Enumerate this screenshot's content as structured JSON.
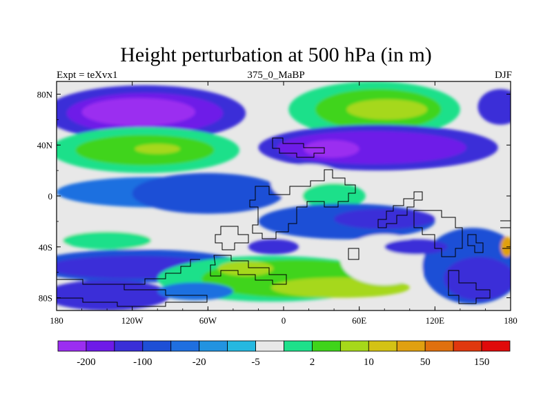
{
  "chart_data": {
    "type": "heatmap",
    "title": "Height perturbation at 500 hPa (in m)",
    "subtitle_left": "Expt = teXvx1",
    "subtitle_center": "375_0_MaBP",
    "subtitle_right": "DJF",
    "x_range": [
      -180,
      180
    ],
    "y_range": [
      -90,
      90
    ],
    "x_ticks": [
      {
        "value": -180,
        "label": "180"
      },
      {
        "value": -120,
        "label": "120W"
      },
      {
        "value": -60,
        "label": "60W"
      },
      {
        "value": 0,
        "label": "0"
      },
      {
        "value": 60,
        "label": "60E"
      },
      {
        "value": 120,
        "label": "120E"
      },
      {
        "value": 180,
        "label": "180"
      }
    ],
    "y_ticks": [
      {
        "value": 80,
        "label": "80N"
      },
      {
        "value": 40,
        "label": "40N"
      },
      {
        "value": 0,
        "label": "0"
      },
      {
        "value": -40,
        "label": "40S"
      },
      {
        "value": -80,
        "label": "80S"
      }
    ],
    "colorbar": {
      "colors": [
        "#9b2ef0",
        "#6e1ae8",
        "#3a2fd8",
        "#1e4fd6",
        "#1f6fe0",
        "#2293e0",
        "#25b8e0",
        "#e8e8e8",
        "#1ee08a",
        "#3fd41a",
        "#a6d81a",
        "#d4c214",
        "#e0a010",
        "#e0700e",
        "#e0380e",
        "#e00a0a"
      ],
      "tick_labels": [
        {
          "boundary": 1,
          "label": "-200"
        },
        {
          "boundary": 3,
          "label": "-100"
        },
        {
          "boundary": 5,
          "label": "-20"
        },
        {
          "boundary": 7,
          "label": "-5"
        },
        {
          "boundary": 9,
          "label": "2"
        },
        {
          "boundary": 11,
          "label": "10"
        },
        {
          "boundary": 13,
          "label": "50"
        },
        {
          "boundary": 15,
          "label": "150"
        }
      ]
    },
    "field_blobs": [
      {
        "lon": -110,
        "lat": 65,
        "rx": 80,
        "ry": 22,
        "value": -5
      },
      {
        "lon": -110,
        "lat": 65,
        "rx": 62,
        "ry": 16,
        "value": -6
      },
      {
        "lon": -115,
        "lat": 66,
        "rx": 45,
        "ry": 11,
        "value": -7
      },
      {
        "lon": -110,
        "lat": 36,
        "rx": 75,
        "ry": 18,
        "value": 1
      },
      {
        "lon": -110,
        "lat": 36,
        "rx": 55,
        "ry": 12,
        "value": 2
      },
      {
        "lon": -100,
        "lat": 37,
        "rx": 18,
        "ry": 4,
        "value": 3
      },
      {
        "lon": 72,
        "lat": 68,
        "rx": 68,
        "ry": 22,
        "value": 1
      },
      {
        "lon": 75,
        "lat": 68,
        "rx": 50,
        "ry": 16,
        "value": 2
      },
      {
        "lon": 82,
        "lat": 68,
        "rx": 32,
        "ry": 8,
        "value": 3
      },
      {
        "lon": 75,
        "lat": 38,
        "rx": 95,
        "ry": 18,
        "value": -5
      },
      {
        "lon": 70,
        "lat": 38,
        "rx": 75,
        "ry": 13,
        "value": -6
      },
      {
        "lon": 38,
        "lat": 37,
        "rx": 22,
        "ry": 7,
        "value": -7
      },
      {
        "lon": 172,
        "lat": 70,
        "rx": 18,
        "ry": 14,
        "value": -5
      },
      {
        "lon": -100,
        "lat": 3,
        "rx": 80,
        "ry": 12,
        "value": -3
      },
      {
        "lon": -60,
        "lat": 2,
        "rx": 60,
        "ry": 16,
        "value": -4
      },
      {
        "lon": 20,
        "lat": 10,
        "rx": 30,
        "ry": 15,
        "value": 0
      },
      {
        "lon": 40,
        "lat": 0,
        "rx": 25,
        "ry": 10,
        "value": 1
      },
      {
        "lon": 130,
        "lat": 10,
        "rx": 45,
        "ry": 10,
        "value": 0
      },
      {
        "lon": 50,
        "lat": -20,
        "rx": 70,
        "ry": 14,
        "value": -4
      },
      {
        "lon": 80,
        "lat": -18,
        "rx": 40,
        "ry": 8,
        "value": -5
      },
      {
        "lon": -130,
        "lat": -30,
        "rx": 60,
        "ry": 12,
        "value": 0
      },
      {
        "lon": -140,
        "lat": -35,
        "rx": 35,
        "ry": 7,
        "value": 1
      },
      {
        "lon": -115,
        "lat": -55,
        "rx": 85,
        "ry": 13,
        "value": -4
      },
      {
        "lon": -120,
        "lat": -56,
        "rx": 68,
        "ry": 9,
        "value": -5
      },
      {
        "lon": -10,
        "lat": -65,
        "rx": 90,
        "ry": 18,
        "value": 1
      },
      {
        "lon": 10,
        "lat": -65,
        "rx": 75,
        "ry": 15,
        "value": 2
      },
      {
        "lon": -30,
        "lat": -57,
        "rx": 22,
        "ry": 6,
        "value": 3
      },
      {
        "lon": 45,
        "lat": -72,
        "rx": 55,
        "ry": 8,
        "value": 3
      },
      {
        "lon": 80,
        "lat": -50,
        "rx": 35,
        "ry": 20,
        "value": 0
      },
      {
        "lon": 150,
        "lat": -55,
        "rx": 40,
        "ry": 30,
        "value": -4
      },
      {
        "lon": 155,
        "lat": -65,
        "rx": 28,
        "ry": 17,
        "value": -5
      },
      {
        "lon": -140,
        "lat": -78,
        "rx": 50,
        "ry": 12,
        "value": -5
      },
      {
        "lon": -70,
        "lat": -75,
        "rx": 30,
        "ry": 7,
        "value": -3
      },
      {
        "lon": 177,
        "lat": -40,
        "rx": 5,
        "ry": 8,
        "value": 5
      },
      {
        "lon": -8,
        "lat": -40,
        "rx": 20,
        "ry": 6,
        "value": -5
      },
      {
        "lon": 105,
        "lat": -40,
        "rx": 25,
        "ry": 6,
        "value": -5
      }
    ]
  }
}
